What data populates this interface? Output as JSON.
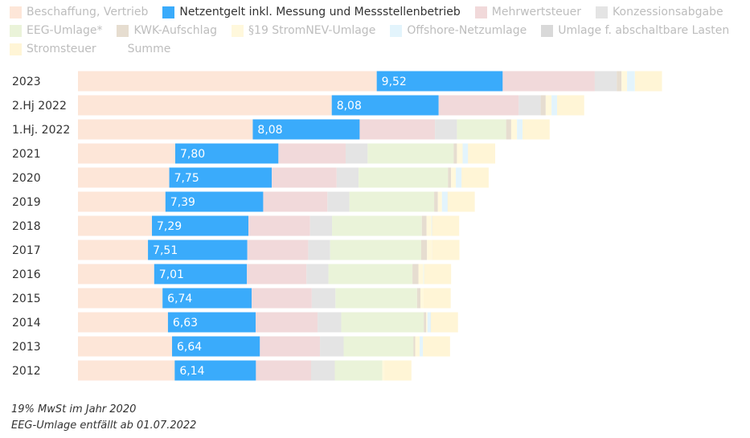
{
  "chart_data": {
    "type": "bar",
    "orientation": "horizontal",
    "stacked": true,
    "categories": [
      "2023",
      "2.Hj 2022",
      "1.Hj. 2022",
      "2021",
      "2020",
      "2019",
      "2018",
      "2017",
      "2016",
      "2015",
      "2014",
      "2013",
      "2012"
    ],
    "highlighted_series": "Netzentgelt inkl. Messung und Messstellenbetrieb",
    "series": [
      {
        "name": "Beschaffung, Vertrieb",
        "color": "#fde6d8",
        "values": [
          22.58,
          19.18,
          13.21,
          7.35,
          6.9,
          6.61,
          5.59,
          5.29,
          5.76,
          6.39,
          6.8,
          7.11,
          7.31
        ]
      },
      {
        "name": "Netzentgelt inkl. Messung und Messstellenbetrieb",
        "color": "#3aabfb",
        "values": [
          9.52,
          8.08,
          8.08,
          7.8,
          7.75,
          7.39,
          7.29,
          7.51,
          7.01,
          6.74,
          6.63,
          6.64,
          6.14
        ]
      },
      {
        "name": "Mehrwertsteuer",
        "color": "#f1d9da",
        "values": [
          6.96,
          6.05,
          5.69,
          5.08,
          4.9,
          4.85,
          4.66,
          4.6,
          4.5,
          4.54,
          4.68,
          4.54,
          4.17
        ]
      },
      {
        "name": "Konzessionsabgabe",
        "color": "#e4e4e4",
        "values": [
          1.66,
          1.66,
          1.66,
          1.66,
          1.66,
          1.66,
          1.66,
          1.66,
          1.66,
          1.79,
          1.79,
          1.79,
          1.79
        ]
      },
      {
        "name": "EEG-Umlage*",
        "color": "#eaf3d9",
        "values": [
          0,
          0,
          3.72,
          6.5,
          6.76,
          6.41,
          6.79,
          6.88,
          6.35,
          6.17,
          6.24,
          5.28,
          3.59
        ]
      },
      {
        "name": "KWK-Aufschlag",
        "color": "#e6ddd0",
        "values": [
          0.36,
          0.38,
          0.38,
          0.25,
          0.23,
          0.28,
          0.35,
          0.44,
          0.45,
          0.25,
          0.18,
          0.13,
          0.0
        ]
      },
      {
        "name": "§19 StromNEV-Umlage",
        "color": "#fff8dc",
        "values": [
          0.42,
          0.44,
          0.44,
          0.43,
          0.36,
          0.31,
          0.37,
          0.39,
          0.38,
          0.24,
          0.09,
          0.33,
          0.15
        ]
      },
      {
        "name": "Offshore-Netzumlage",
        "color": "#e3f4fc",
        "values": [
          0.59,
          0.42,
          0.42,
          0.4,
          0.42,
          0.42,
          0.04,
          0.0,
          0.04,
          0.0,
          0.25,
          0.25,
          0.0
        ]
      },
      {
        "name": "Umlage f. abschaltbare Lasten",
        "color": "#d9d9d9",
        "values": [
          0.0,
          0.0,
          0.0,
          0.01,
          0.01,
          0.01,
          0.01,
          0.01,
          0.0,
          0.0,
          0.01,
          0.0,
          0.0
        ]
      },
      {
        "name": "Stromsteuer",
        "color": "#fff5d6",
        "values": [
          2.05,
          2.05,
          2.05,
          2.05,
          2.05,
          2.05,
          2.05,
          2.05,
          2.05,
          2.05,
          2.05,
          2.05,
          2.05
        ]
      },
      {
        "name": "Summe",
        "color": "#ffffff",
        "values": [
          null,
          null,
          null,
          null,
          null,
          null,
          null,
          null,
          null,
          null,
          null,
          null,
          null
        ]
      }
    ],
    "xlim": [
      0,
      50
    ],
    "grid": false,
    "legend_position": "top-left"
  },
  "footnotes": [
    "19% MwSt im Jahr 2020",
    "EEG-Umlage entfällt ab 01.07.2022"
  ]
}
